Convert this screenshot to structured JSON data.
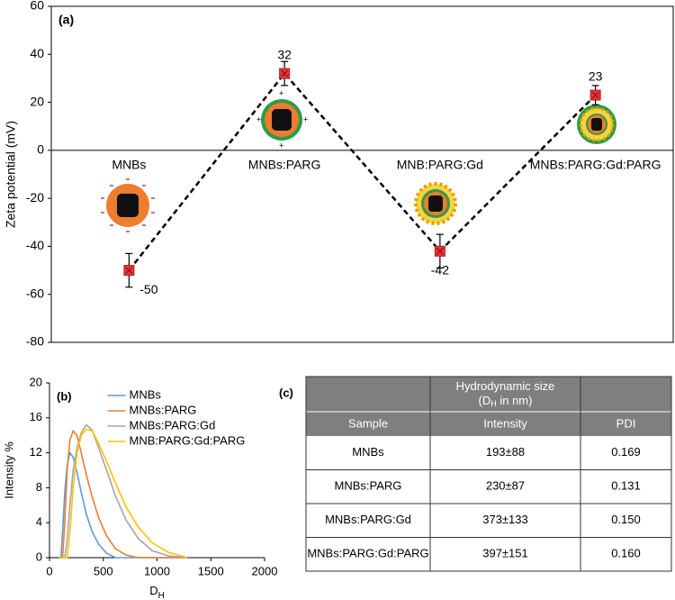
{
  "chart_data": [
    {
      "type": "line",
      "panel_label": "(a)",
      "y_label": "Zeta potential (mV)",
      "categories": [
        "MNBs",
        "MNBs:PARG",
        "MNB:PARG:Gd",
        "MNBs:PARG:Gd:PARG"
      ],
      "values": [
        -50,
        32,
        -42,
        23
      ],
      "errors": [
        7,
        5,
        7,
        4
      ],
      "color": "#e8353b",
      "line_color": "#000000",
      "ylim": [
        -80,
        60
      ],
      "yticks": [
        -80,
        -60,
        -40,
        -20,
        0,
        20,
        40,
        60
      ],
      "grid": false
    },
    {
      "type": "line",
      "panel_label": "(b)",
      "y_label": "Intensity %",
      "x_label": "D",
      "x_label_sub": "H",
      "legend": "upper center",
      "grid": false,
      "xlim": [
        0,
        2000
      ],
      "xticks": [
        0,
        500,
        1000,
        1500,
        2000
      ],
      "ylim": [
        0,
        20
      ],
      "yticks": [
        0,
        4,
        8,
        12,
        16,
        20
      ],
      "series": [
        {
          "name": "MNBs",
          "color": "#5b9bd5",
          "x": [
            91,
            106,
            122,
            142,
            164,
            190,
            220,
            255,
            295,
            342,
            396,
            459,
            531,
            615,
            712,
            825,
            955,
            1106,
            1281
          ],
          "values": [
            0,
            0,
            3,
            7.5,
            10.5,
            12,
            11.5,
            9.8,
            7.5,
            5,
            3,
            1.5,
            0.5,
            0,
            0,
            0,
            0,
            0,
            0
          ]
        },
        {
          "name": "MNBs:PARG",
          "color": "#ed7d31",
          "x": [
            91,
            106,
            122,
            142,
            164,
            190,
            220,
            255,
            295,
            342,
            396,
            459,
            531,
            615,
            712,
            825,
            955,
            1106,
            1281
          ],
          "values": [
            0,
            0,
            0,
            4,
            10,
            13.5,
            14.5,
            14,
            12,
            9.5,
            7,
            4.5,
            2.5,
            1,
            0.3,
            0,
            0,
            0,
            0
          ]
        },
        {
          "name": "MNBs:PARG:Gd",
          "color": "#a5a5a5",
          "x": [
            91,
            106,
            122,
            142,
            164,
            190,
            220,
            255,
            295,
            342,
            396,
            459,
            531,
            615,
            712,
            825,
            955,
            1106,
            1281
          ],
          "values": [
            0,
            0,
            0,
            0,
            2,
            6,
            10,
            12.5,
            14.3,
            15.2,
            14.6,
            12.5,
            10,
            7,
            4.3,
            2.2,
            0.8,
            0.2,
            0
          ]
        },
        {
          "name": "MNB:PARG:Gd:PARG",
          "color": "#ffc000",
          "x": [
            91,
            106,
            122,
            142,
            164,
            190,
            220,
            255,
            295,
            342,
            396,
            459,
            531,
            615,
            712,
            825,
            955,
            1106,
            1281
          ],
          "values": [
            0,
            0,
            0,
            0,
            0,
            3,
            8,
            12,
            14,
            14.7,
            14.5,
            13,
            11,
            8.5,
            5.8,
            3.5,
            1.7,
            0.6,
            0
          ]
        }
      ]
    }
  ],
  "table": {
    "panel_label": "(c)",
    "group_header": {
      "line1": "Hydrodynamic size",
      "line2_pre": "(D",
      "line2_sub": "H",
      "line2_post": " in nm)"
    },
    "columns": [
      "Sample",
      "Intensity",
      "PDI"
    ],
    "rows": [
      [
        "MNBs",
        "193±88",
        "0.169"
      ],
      [
        "MNBs:PARG",
        "230±87",
        "0.131"
      ],
      [
        "MNBs:PARG:Gd",
        "373±133",
        "0.150"
      ],
      [
        "MNBs:PARG:Gd:PARG",
        "397±151",
        "0.160"
      ]
    ]
  }
}
